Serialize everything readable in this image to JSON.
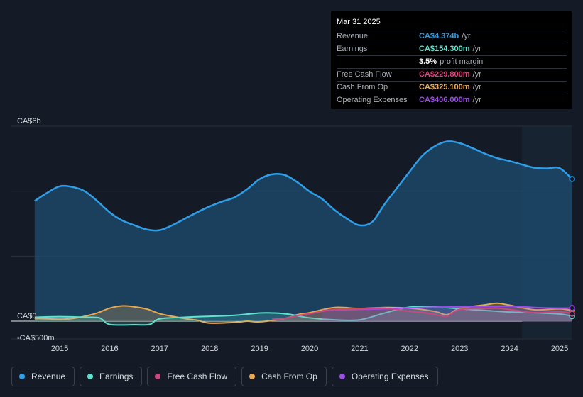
{
  "tooltip": {
    "date": "Mar 31 2025",
    "rows": [
      {
        "label": "Revenue",
        "value": "CA$4.374b",
        "unit": "/yr",
        "color": "#2f9ee8"
      },
      {
        "label": "Earnings",
        "value": "CA$154.300m",
        "unit": "/yr",
        "color": "#5fe3cf"
      },
      {
        "label": "",
        "value": "3.5%",
        "unit": "profit margin",
        "color": "#ffffff"
      },
      {
        "label": "Free Cash Flow",
        "value": "CA$229.800m",
        "unit": "/yr",
        "color": "#e0447f"
      },
      {
        "label": "Cash From Op",
        "value": "CA$325.100m",
        "unit": "/yr",
        "color": "#f0b060"
      },
      {
        "label": "Operating Expenses",
        "value": "CA$406.000m",
        "unit": "/yr",
        "color": "#9b4de8"
      }
    ]
  },
  "legend": [
    {
      "label": "Revenue",
      "color": "#2f9ee8"
    },
    {
      "label": "Earnings",
      "color": "#5fe3cf"
    },
    {
      "label": "Free Cash Flow",
      "color": "#c9487f"
    },
    {
      "label": "Cash From Op",
      "color": "#e8a952"
    },
    {
      "label": "Operating Expenses",
      "color": "#9b4de8"
    }
  ],
  "chart_data": {
    "type": "area",
    "title": "",
    "xlabel": "",
    "ylabel": "",
    "ylim": [
      -500,
      6000
    ],
    "y_tick_labels": [
      "CA$6b",
      "CA$0",
      "-CA$500m"
    ],
    "x_tick_labels": [
      "2015",
      "2016",
      "2017",
      "2018",
      "2019",
      "2020",
      "2021",
      "2022",
      "2023",
      "2024",
      "2025"
    ],
    "series": [
      {
        "name": "Revenue",
        "color": "#2f9ee8",
        "x": [
          2014.5,
          2014.75,
          2015.0,
          2015.25,
          2015.5,
          2015.75,
          2016.0,
          2016.25,
          2016.5,
          2016.75,
          2017.0,
          2017.25,
          2017.5,
          2017.75,
          2018.0,
          2018.25,
          2018.5,
          2018.75,
          2019.0,
          2019.25,
          2019.5,
          2019.75,
          2020.0,
          2020.25,
          2020.5,
          2020.75,
          2021.0,
          2021.25,
          2021.5,
          2021.75,
          2022.0,
          2022.25,
          2022.5,
          2022.75,
          2023.0,
          2023.25,
          2023.5,
          2023.75,
          2024.0,
          2024.25,
          2024.5,
          2024.75,
          2025.0,
          2025.25
        ],
        "values": [
          3700,
          3950,
          4150,
          4130,
          4000,
          3700,
          3350,
          3100,
          2950,
          2820,
          2800,
          2950,
          3150,
          3350,
          3530,
          3680,
          3810,
          4060,
          4370,
          4520,
          4500,
          4280,
          3990,
          3760,
          3420,
          3150,
          2950,
          3050,
          3600,
          4100,
          4600,
          5080,
          5380,
          5530,
          5480,
          5330,
          5160,
          5020,
          4930,
          4820,
          4720,
          4700,
          4710,
          4374
        ]
      },
      {
        "name": "Earnings",
        "color": "#5fe3cf",
        "x": [
          2014.5,
          2015.0,
          2015.5,
          2015.8,
          2016.0,
          2016.5,
          2016.8,
          2017.0,
          2017.5,
          2018.0,
          2018.5,
          2019.0,
          2019.3,
          2019.6,
          2020.0,
          2020.5,
          2021.0,
          2021.5,
          2022.0,
          2022.5,
          2023.0,
          2023.5,
          2024.0,
          2024.5,
          2025.0,
          2025.25
        ],
        "values": [
          120,
          140,
          120,
          100,
          -100,
          -110,
          -100,
          70,
          120,
          150,
          180,
          250,
          250,
          210,
          100,
          40,
          40,
          250,
          430,
          440,
          380,
          330,
          280,
          260,
          220,
          154
        ]
      },
      {
        "name": "Free Cash Flow",
        "color": "#c9487f",
        "x": [
          2019.25,
          2019.5,
          2019.75,
          2020.0,
          2020.5,
          2021.0,
          2021.5,
          2022.0,
          2022.25,
          2022.5,
          2022.75,
          2023.0,
          2023.5,
          2023.75,
          2024.0,
          2024.5,
          2025.0,
          2025.25
        ],
        "values": [
          60,
          80,
          170,
          230,
          360,
          380,
          400,
          300,
          270,
          210,
          160,
          360,
          390,
          400,
          360,
          260,
          290,
          230
        ]
      },
      {
        "name": "Cash From Op",
        "color": "#e8a952",
        "x": [
          2014.5,
          2015.0,
          2015.25,
          2015.5,
          2015.75,
          2016.0,
          2016.25,
          2016.5,
          2016.75,
          2017.0,
          2017.25,
          2017.5,
          2017.75,
          2018.0,
          2018.5,
          2018.75,
          2019.0,
          2019.5,
          2019.75,
          2020.0,
          2020.5,
          2021.0,
          2021.5,
          2022.0,
          2022.5,
          2022.75,
          2023.0,
          2023.5,
          2023.75,
          2024.0,
          2024.5,
          2025.0,
          2025.25
        ],
        "values": [
          80,
          60,
          80,
          150,
          250,
          400,
          470,
          440,
          370,
          230,
          150,
          80,
          30,
          -60,
          -40,
          0,
          -20,
          80,
          200,
          260,
          420,
          390,
          420,
          400,
          300,
          200,
          390,
          500,
          550,
          490,
          350,
          380,
          325
        ]
      },
      {
        "name": "Operating Expenses",
        "color": "#9b4de8",
        "x": [
          2020.25,
          2020.5,
          2021.0,
          2021.5,
          2022.0,
          2022.5,
          2023.0,
          2023.5,
          2024.0,
          2024.5,
          2025.0,
          2025.25
        ],
        "values": [
          330,
          340,
          360,
          380,
          410,
          430,
          440,
          450,
          460,
          420,
          400,
          406
        ]
      }
    ]
  }
}
